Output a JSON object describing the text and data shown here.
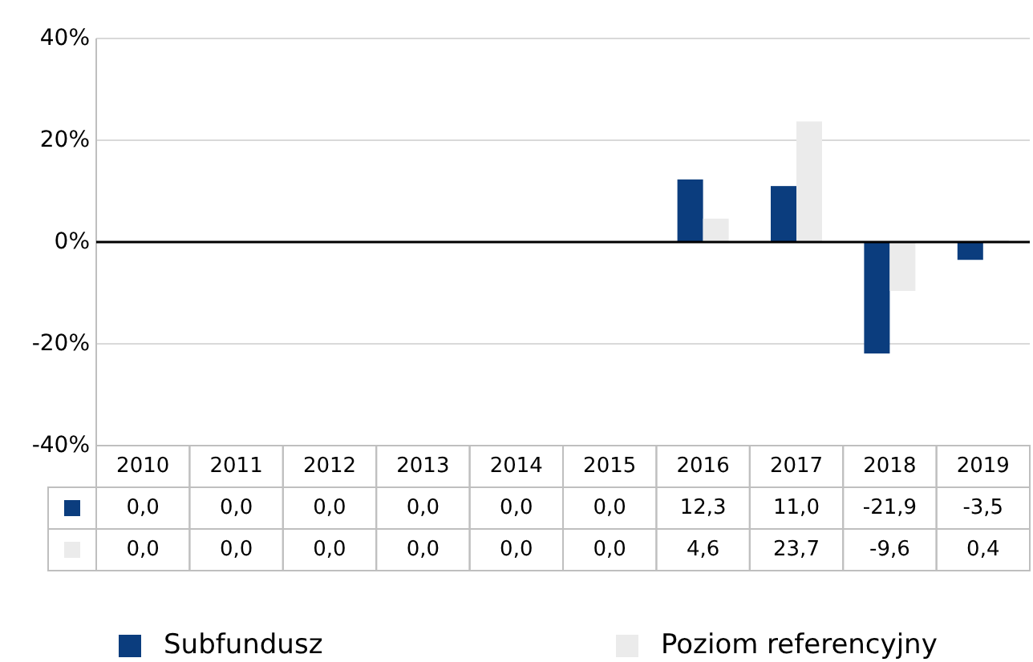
{
  "chart_data": {
    "type": "bar",
    "categories": [
      "2010",
      "2011",
      "2012",
      "2013",
      "2014",
      "2015",
      "2016",
      "2017",
      "2018",
      "2019"
    ],
    "series": [
      {
        "name": "Subfundusz",
        "color": "#0b3d7e",
        "values": [
          0,
          0,
          0,
          0,
          0,
          0,
          12.3,
          11.0,
          -21.9,
          -3.5
        ],
        "value_labels": [
          "0,0",
          "0,0",
          "0,0",
          "0,0",
          "0,0",
          "0,0",
          "12,3",
          "11,0",
          "-21,9",
          "-3,5"
        ]
      },
      {
        "name": "Poziom referencyjny",
        "color": "#ebebeb",
        "values": [
          0,
          0,
          0,
          0,
          0,
          0,
          4.6,
          23.7,
          -9.6,
          0.4
        ],
        "value_labels": [
          "0,0",
          "0,0",
          "0,0",
          "0,0",
          "0,0",
          "0,0",
          "4,6",
          "23,7",
          "-9,6",
          "0,4"
        ]
      }
    ],
    "ylim": [
      -40,
      40
    ],
    "yticks": [
      {
        "value": -40,
        "label": "-40%"
      },
      {
        "value": -20,
        "label": "-20%"
      },
      {
        "value": 0,
        "label": "0%"
      },
      {
        "value": 20,
        "label": "20%"
      },
      {
        "value": 40,
        "label": "40%"
      }
    ],
    "grid": "y",
    "legend": "bottom"
  }
}
